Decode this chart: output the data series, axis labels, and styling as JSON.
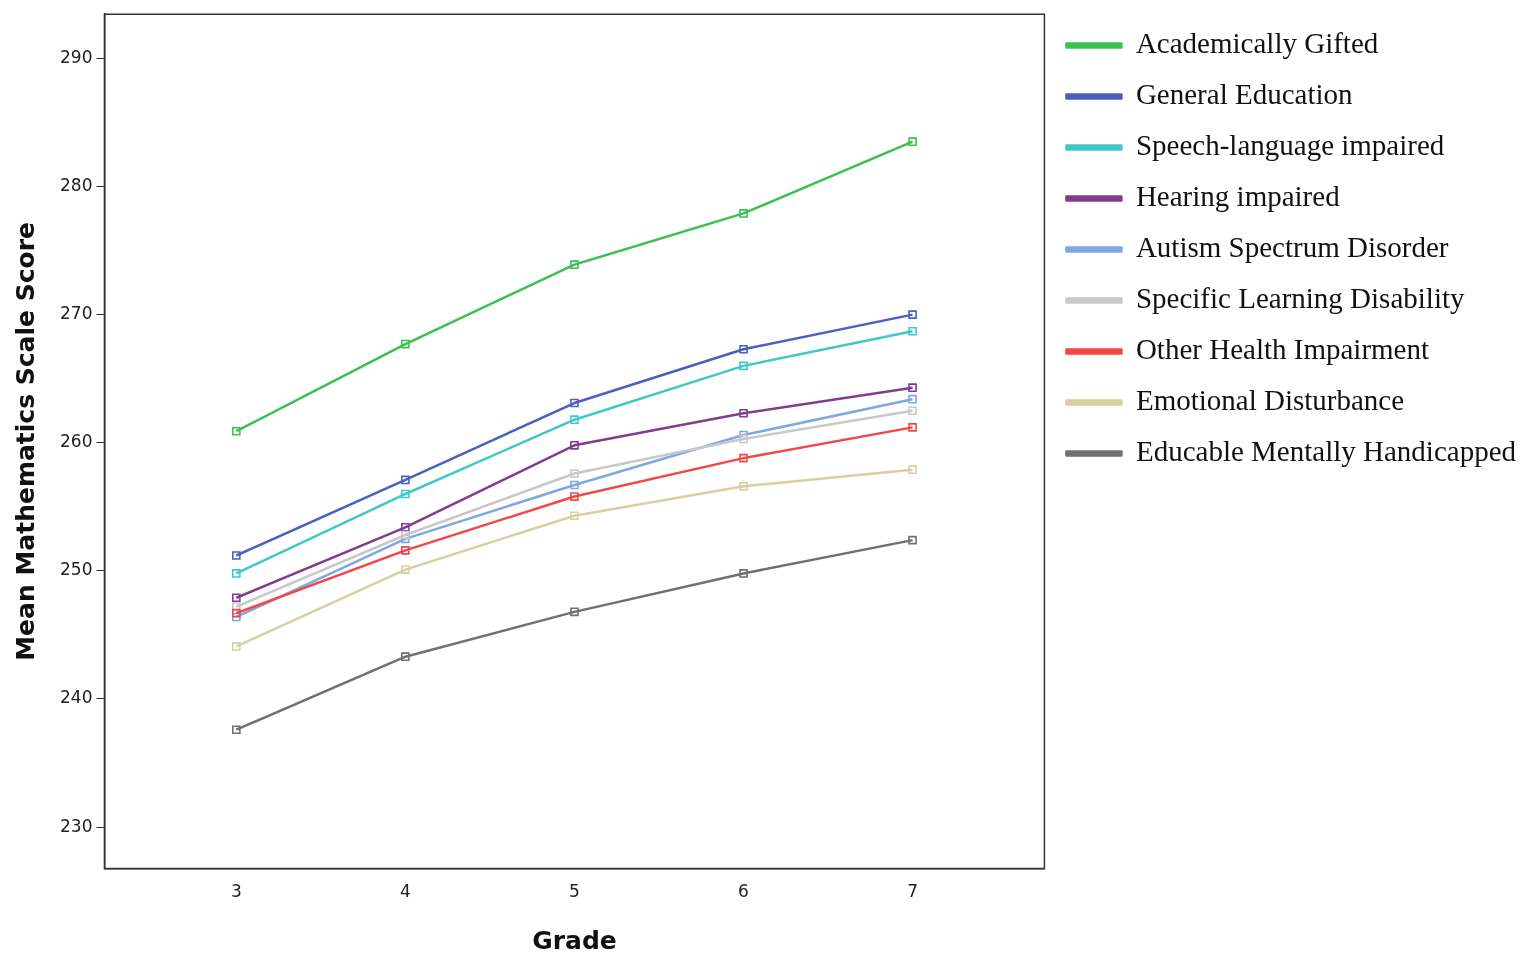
{
  "chart_data": {
    "type": "line",
    "xlabel": "Grade",
    "ylabel": "Mean Mathematics Scale Score",
    "x": [
      3,
      4,
      5,
      6,
      7
    ],
    "xlim": [
      2.22,
      7.78
    ],
    "xticks": [
      3,
      4,
      5,
      6,
      7
    ],
    "ylim": [
      226.76,
      293.45
    ],
    "yticks": [
      230,
      240,
      250,
      260,
      270,
      280,
      290
    ],
    "marker": "square",
    "legend": "right",
    "grid": false,
    "series": [
      {
        "name": "Academically Gifted",
        "color": "#3cc050",
        "values": [
          260.9,
          267.7,
          273.9,
          277.9,
          283.5
        ]
      },
      {
        "name": "General Education",
        "color": "#4a60c0",
        "values": [
          251.2,
          257.1,
          263.1,
          267.3,
          270.0
        ]
      },
      {
        "name": "Speech-language impaired",
        "color": "#40c8c8",
        "values": [
          249.8,
          256.0,
          261.8,
          266.0,
          268.7
        ]
      },
      {
        "name": "Hearing impaired",
        "color": "#803d90",
        "values": [
          247.9,
          253.4,
          259.8,
          262.3,
          264.3
        ]
      },
      {
        "name": "Autism Spectrum Disorder",
        "color": "#80a8e0",
        "values": [
          246.4,
          252.5,
          256.7,
          260.6,
          263.4
        ]
      },
      {
        "name": "Specific Learning Disability",
        "color": "#c8c8c8",
        "values": [
          247.2,
          252.8,
          257.6,
          260.3,
          262.5
        ]
      },
      {
        "name": "Other Health Impairment",
        "color": "#f04848",
        "values": [
          246.7,
          251.6,
          255.8,
          258.8,
          261.2
        ]
      },
      {
        "name": "Emotional Disturbance",
        "color": "#d8d0a0",
        "values": [
          244.1,
          250.1,
          254.3,
          256.6,
          257.9
        ]
      },
      {
        "name": "Educable Mentally Handicapped",
        "color": "#707070",
        "values": [
          237.6,
          243.3,
          246.8,
          249.8,
          252.4
        ]
      }
    ]
  }
}
